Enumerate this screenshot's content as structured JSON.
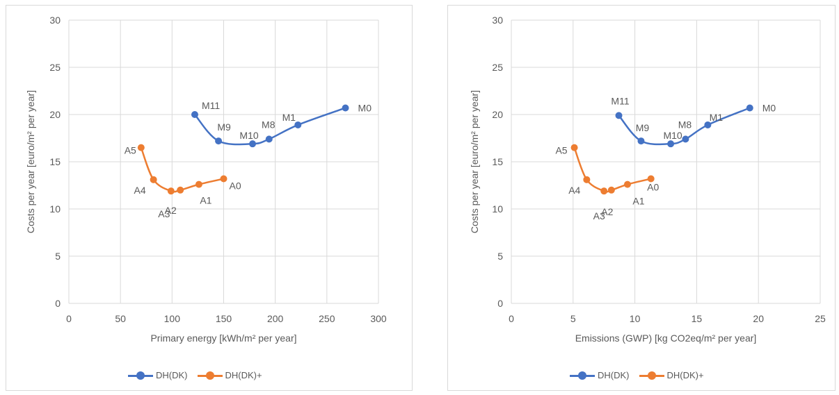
{
  "chart_data": [
    {
      "type": "line",
      "xlabel": "Primary energy [kWh/m² per year]",
      "ylabel": "Costs per year [euro/m² per year]",
      "xlim": [
        0,
        300
      ],
      "ylim": [
        0,
        30
      ],
      "xticks": [
        0,
        50,
        100,
        150,
        200,
        250,
        300
      ],
      "yticks": [
        0,
        5,
        10,
        15,
        20,
        25,
        30
      ],
      "grid": true,
      "legend_position": "bottom",
      "series": [
        {
          "name": "DH(DK)",
          "color": "#4472c4",
          "points": [
            {
              "label": "M0",
              "x": 268,
              "y": 20.7
            },
            {
              "label": "M1",
              "x": 222,
              "y": 18.9
            },
            {
              "label": "M8",
              "x": 194,
              "y": 17.4
            },
            {
              "label": "M10",
              "x": 178,
              "y": 16.9
            },
            {
              "label": "M9",
              "x": 145,
              "y": 17.2
            },
            {
              "label": "M11",
              "x": 122,
              "y": 20.0
            }
          ]
        },
        {
          "name": "DH(DK)+",
          "color": "#ed7d31",
          "points": [
            {
              "label": "A0",
              "x": 150,
              "y": 13.2
            },
            {
              "label": "A1",
              "x": 126,
              "y": 12.6
            },
            {
              "label": "A2",
              "x": 108,
              "y": 12.0
            },
            {
              "label": "A3",
              "x": 99,
              "y": 11.9
            },
            {
              "label": "A4",
              "x": 82,
              "y": 13.1
            },
            {
              "label": "A5",
              "x": 70,
              "y": 16.5
            }
          ]
        }
      ]
    },
    {
      "type": "line",
      "xlabel": "Emissions (GWP) [kg CO2eq/m² per year]",
      "ylabel": "Costs per year [euro/m² per year]",
      "xlim": [
        0,
        25
      ],
      "ylim": [
        0,
        30
      ],
      "xticks": [
        0,
        5,
        10,
        15,
        20,
        25
      ],
      "yticks": [
        0,
        5,
        10,
        15,
        20,
        25,
        30
      ],
      "grid": true,
      "legend_position": "bottom",
      "series": [
        {
          "name": "DH(DK)",
          "color": "#4472c4",
          "points": [
            {
              "label": "M0",
              "x": 19.3,
              "y": 20.7
            },
            {
              "label": "M1",
              "x": 15.9,
              "y": 18.9
            },
            {
              "label": "M8",
              "x": 14.1,
              "y": 17.4
            },
            {
              "label": "M10",
              "x": 12.9,
              "y": 16.9
            },
            {
              "label": "M9",
              "x": 10.5,
              "y": 17.2
            },
            {
              "label": "M11",
              "x": 8.7,
              "y": 19.9
            }
          ]
        },
        {
          "name": "DH(DK)+",
          "color": "#ed7d31",
          "points": [
            {
              "label": "A0",
              "x": 11.3,
              "y": 13.2
            },
            {
              "label": "A1",
              "x": 9.4,
              "y": 12.6
            },
            {
              "label": "A2",
              "x": 8.1,
              "y": 12.0
            },
            {
              "label": "A3",
              "x": 7.5,
              "y": 11.9
            },
            {
              "label": "A4",
              "x": 6.1,
              "y": 13.1
            },
            {
              "label": "A5",
              "x": 5.1,
              "y": 16.5
            }
          ]
        }
      ]
    }
  ]
}
